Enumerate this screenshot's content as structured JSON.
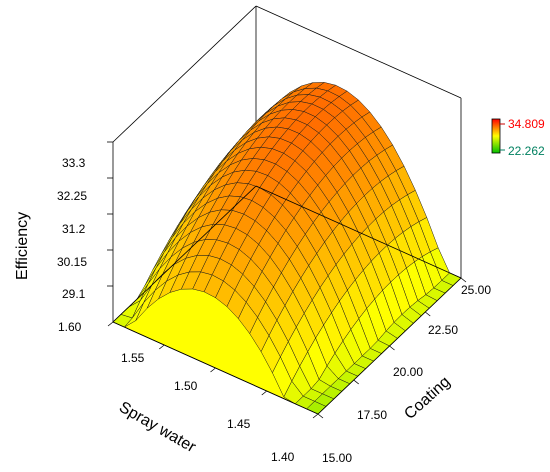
{
  "chart_data": {
    "type": "surface3d",
    "title": "",
    "zlabel": "Efficiency",
    "xlabel": "Spray water",
    "ylabel": "Coating",
    "spray_ticks": [
      "1.40",
      "1.45",
      "1.50",
      "1.55",
      "1.60"
    ],
    "coating_ticks": [
      "15.00",
      "17.50",
      "20.00",
      "22.50",
      "25.00"
    ],
    "z_ticks": [
      "29.1",
      "30.15",
      "31.2",
      "32.25",
      "33.3"
    ],
    "spray_range": [
      1.4,
      1.6
    ],
    "coating_range": [
      15,
      25
    ],
    "z_range": [
      28.05,
      33.3
    ],
    "color_range": [
      22.262,
      34.809
    ],
    "color_scale": {
      "low": "#00d000",
      "mid": "#ffff00",
      "high": "#ff0000"
    },
    "floor_color": "#ffff00",
    "legend": {
      "max_label": "34.809",
      "min_label": "22.262",
      "max_color": "#ff0000",
      "min_color": "#008060",
      "placement": "right"
    },
    "grid_resolution": 18,
    "surface_samples": [
      {
        "spray": 1.4,
        "coating": 15.0,
        "efficiency": 25.2
      },
      {
        "spray": 1.6,
        "coating": 15.0,
        "efficiency": 30.4
      },
      {
        "spray": 1.5,
        "coating": 15.0,
        "efficiency": 31.0
      },
      {
        "spray": 1.5,
        "coating": 25.0,
        "efficiency": 33.6
      },
      {
        "spray": 1.6,
        "coating": 25.0,
        "efficiency": 28.0
      }
    ]
  }
}
